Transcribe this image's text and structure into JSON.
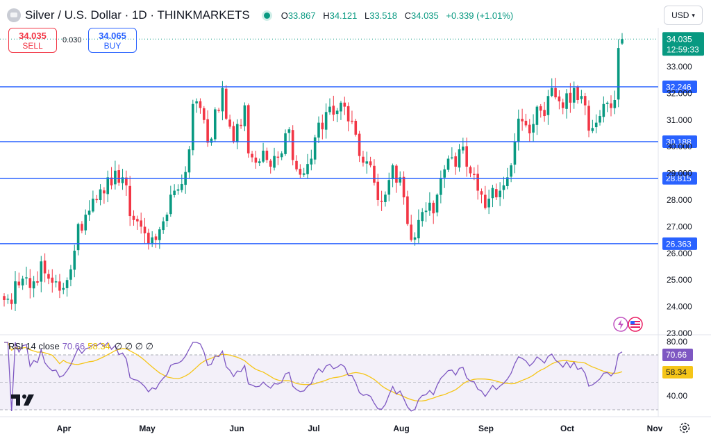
{
  "header": {
    "title": "Silver / U.S. Dollar · 1D · THINKMARKETS",
    "ohlc": [
      {
        "k": "O",
        "v": "33.867"
      },
      {
        "k": "H",
        "v": "34.121"
      },
      {
        "k": "L",
        "v": "33.518"
      },
      {
        "k": "C",
        "v": "34.035"
      }
    ],
    "change": "+0.339 (+1.01%)"
  },
  "currency_label": "USD",
  "trade": {
    "sell_price": "34.035",
    "sell_label": "SELL",
    "spread": "0.030",
    "buy_price": "34.065",
    "buy_label": "BUY"
  },
  "colors": {
    "up": "#089981",
    "down": "#f23645",
    "level_line": "#2962ff",
    "rsi": "#7e57c2",
    "rsi_ma": "#f5c518",
    "rsi_band": "#7e57c2"
  },
  "price_axis": {
    "labels": [
      "33.000",
      "32.000",
      "31.000",
      "30.000",
      "29.000",
      "28.000",
      "27.000",
      "26.000",
      "25.000",
      "24.000",
      "23.000"
    ]
  },
  "last_price": {
    "value": "34.035",
    "countdown": "12:59:33"
  },
  "levels": [
    {
      "value": 32.246,
      "label": "32.246"
    },
    {
      "value": 30.188,
      "label": "30.188"
    },
    {
      "value": 28.815,
      "label": "28.815"
    },
    {
      "value": 26.363,
      "label": "26.363"
    }
  ],
  "rsi": {
    "legend_name": "RSI 14 close",
    "value": "70.66",
    "ma_value": "58.34",
    "axis_labels": [
      "80.00",
      "40.00"
    ],
    "value_label": "70.66",
    "ma_label": "58.34",
    "hidden_marks": "∅ ∅ ∅ ∅"
  },
  "time_axis": [
    "Apr",
    "May",
    "Jun",
    "Jul",
    "Aug",
    "Sep",
    "Oct",
    "Nov"
  ],
  "chart_data": {
    "type": "candlestick",
    "title": "Silver / U.S. Dollar · 1D · THINKMARKETS",
    "ylim": [
      23,
      34.6
    ],
    "closes": [
      24.25,
      24.3,
      24.1,
      24.95,
      24.8,
      25.05,
      25.1,
      24.7,
      24.95,
      24.9,
      25.7,
      25.25,
      25.05,
      24.9,
      24.95,
      24.6,
      24.7,
      25.0,
      25.4,
      26.1,
      27.1,
      26.85,
      27.45,
      27.6,
      28.05,
      28.0,
      28.4,
      28.25,
      28.85,
      28.55,
      29.1,
      28.65,
      28.85,
      28.55,
      27.4,
      27.25,
      27.2,
      27.0,
      26.75,
      26.35,
      26.6,
      26.5,
      26.9,
      27.2,
      27.45,
      28.2,
      28.35,
      28.4,
      28.6,
      29.05,
      29.9,
      31.6,
      31.7,
      31.45,
      31.0,
      30.15,
      30.3,
      31.4,
      31.35,
      32.2,
      31.05,
      30.75,
      30.2,
      30.85,
      30.8,
      31.55,
      29.75,
      29.6,
      29.4,
      29.45,
      29.85,
      29.5,
      29.25,
      29.65,
      29.6,
      29.75,
      30.5,
      30.65,
      29.5,
      29.15,
      28.95,
      29.0,
      29.35,
      29.55,
      30.35,
      30.9,
      30.65,
      31.3,
      31.5,
      31.2,
      31.35,
      31.65,
      31.5,
      30.95,
      30.95,
      30.45,
      29.65,
      29.4,
      29.45,
      29.3,
      28.65,
      28.0,
      27.95,
      28.2,
      28.75,
      29.3,
      28.65,
      28.85,
      28.1,
      27.1,
      26.5,
      26.6,
      27.25,
      27.55,
      27.6,
      27.9,
      27.5,
      28.2,
      28.8,
      29.15,
      29.55,
      29.6,
      29.25,
      29.9,
      30.0,
      29.25,
      29.0,
      28.95,
      28.35,
      28.2,
      27.7,
      28.05,
      28.45,
      28.1,
      28.35,
      28.55,
      28.85,
      29.3,
      30.2,
      31.05,
      30.95,
      30.8,
      30.5,
      30.85,
      31.5,
      31.35,
      31.15,
      31.9,
      32.2,
      31.85,
      31.7,
      31.45,
      32.0,
      31.65,
      32.2,
      31.75,
      31.9,
      31.55,
      30.6,
      30.7,
      30.9,
      31.15,
      31.6,
      31.65,
      31.45,
      31.75,
      33.7,
      34.035
    ]
  }
}
